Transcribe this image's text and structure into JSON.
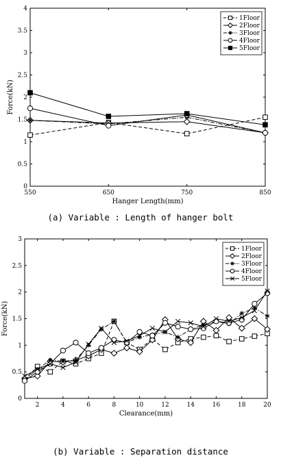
{
  "chart_data": [
    {
      "type": "line",
      "caption": "(a) Variable : Length of hanger bolt",
      "xlabel": "Hanger Length(mm)",
      "ylabel": "Force(kN)",
      "xlim": [
        550,
        850
      ],
      "ylim": [
        0,
        4
      ],
      "xticks": [
        550,
        650,
        750,
        850
      ],
      "yticks": [
        0,
        0.5,
        1,
        1.5,
        2,
        2.5,
        3,
        3.5,
        4
      ],
      "ytick_labels": [
        "0",
        "0.5",
        "1",
        "1.5",
        "2",
        "2.5",
        "3",
        "3.5",
        "4"
      ],
      "grid": false,
      "legend_position": "top-right",
      "x": [
        550,
        650,
        750,
        850
      ],
      "series": [
        {
          "name": "1Floor",
          "values": [
            1.15,
            1.43,
            1.18,
            1.55
          ],
          "marker": "square-open",
          "dash": "dashed"
        },
        {
          "name": "2Floor",
          "values": [
            1.48,
            1.42,
            1.45,
            1.2
          ],
          "marker": "diamond-open",
          "dash": "solid"
        },
        {
          "name": "3Floor",
          "values": [
            1.48,
            1.4,
            1.55,
            1.2
          ],
          "marker": "asterisk",
          "dash": "dashdot"
        },
        {
          "name": "4Floor",
          "values": [
            1.75,
            1.36,
            1.6,
            1.2
          ],
          "marker": "circle-open",
          "dash": "solid"
        },
        {
          "name": "5Floor",
          "values": [
            2.1,
            1.57,
            1.63,
            1.38
          ],
          "marker": "square-filled",
          "dash": "solid"
        }
      ]
    },
    {
      "type": "line",
      "caption": "(b) Variable : Separation distance",
      "xlabel": "Clearance(mm)",
      "ylabel": "Force(kN)",
      "xlim": [
        1,
        20
      ],
      "ylim": [
        0,
        3
      ],
      "xticks": [
        2,
        4,
        6,
        8,
        10,
        12,
        14,
        16,
        18,
        20
      ],
      "yticks": [
        0,
        0.5,
        1,
        1.5,
        2,
        2.5,
        3
      ],
      "ytick_labels": [
        "0",
        "0.5",
        "1",
        "1.5",
        "2",
        "2.5",
        "3"
      ],
      "grid": false,
      "legend_position": "top-right",
      "x": [
        1,
        2,
        3,
        4,
        5,
        6,
        7,
        8,
        9,
        10,
        11,
        12,
        13,
        14,
        15,
        16,
        17,
        18,
        19,
        20
      ],
      "series": [
        {
          "name": "1Floor",
          "values": [
            0.35,
            0.6,
            0.5,
            0.7,
            0.65,
            0.75,
            0.85,
            1.45,
            1.05,
            0.92,
            1.12,
            0.92,
            1.05,
            1.12,
            1.15,
            1.18,
            1.07,
            1.12,
            1.17,
            1.22
          ],
          "marker": "square-open",
          "dash": "dashed"
        },
        {
          "name": "2Floor",
          "values": [
            0.37,
            0.42,
            0.7,
            0.68,
            0.72,
            0.8,
            0.92,
            0.85,
            0.95,
            0.88,
            1.1,
            1.48,
            1.12,
            1.05,
            1.45,
            1.28,
            1.52,
            1.32,
            1.5,
            1.3
          ],
          "marker": "diamond-open",
          "dash": "solid"
        },
        {
          "name": "3Floor",
          "values": [
            0.35,
            0.55,
            0.72,
            0.7,
            0.72,
            1.0,
            1.3,
            1.45,
            1.05,
            1.15,
            1.2,
            1.25,
            1.15,
            1.3,
            1.38,
            1.45,
            1.4,
            1.6,
            1.7,
            1.55
          ],
          "marker": "asterisk",
          "dash": "dashdot"
        },
        {
          "name": "4Floor",
          "values": [
            0.33,
            0.5,
            0.65,
            0.9,
            1.05,
            0.85,
            0.95,
            1.1,
            1.05,
            1.25,
            1.18,
            1.42,
            1.35,
            1.3,
            1.32,
            1.45,
            1.42,
            1.48,
            1.78,
            1.98
          ],
          "marker": "circle-open",
          "dash": "solid"
        },
        {
          "name": "5Floor",
          "values": [
            0.42,
            0.55,
            0.65,
            0.58,
            0.68,
            1.02,
            1.32,
            1.05,
            1.08,
            1.18,
            1.32,
            1.25,
            1.45,
            1.42,
            1.35,
            1.5,
            1.45,
            1.52,
            1.65,
            2.02
          ],
          "marker": "x",
          "dash": "solid"
        }
      ]
    }
  ]
}
